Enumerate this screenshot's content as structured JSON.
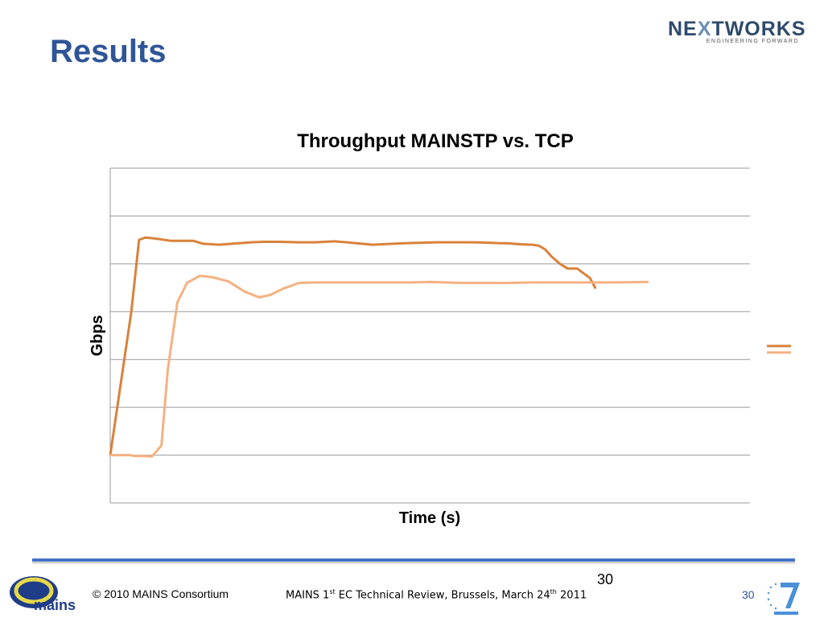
{
  "slide": {
    "title": "Results"
  },
  "logo": {
    "company_prefix": "NE",
    "company_accent": "X",
    "company_suffix": "TWORKS",
    "tagline": "ENGINEERING FORWARD"
  },
  "chart_data": {
    "type": "line",
    "title": "Throughput MAINSTP vs. TCP",
    "xlabel": "Time (s)",
    "ylabel": "Gbps",
    "ylim": [
      0,
      7
    ],
    "xlim": [
      0,
      100
    ],
    "grid": true,
    "legend": "right",
    "series": [
      {
        "color": "#d9823b",
        "x": [
          0,
          3.3,
          4.5,
          5.5,
          7,
          9.5,
          13,
          14.5,
          17,
          22,
          24,
          26.5,
          29.5,
          32,
          35,
          37,
          41,
          46,
          51,
          53,
          55,
          57,
          59.5,
          60.8,
          62,
          64,
          65.8,
          66,
          67,
          68,
          69,
          70.3,
          71.5,
          73,
          75,
          75.8
        ],
        "y": [
          1,
          4,
          5.5,
          5.55,
          5.53,
          5.48,
          5.48,
          5.42,
          5.4,
          5.45,
          5.46,
          5.46,
          5.45,
          5.45,
          5.47,
          5.45,
          5.4,
          5.43,
          5.45,
          5.45,
          5.45,
          5.45,
          5.44,
          5.43,
          5.43,
          5.41,
          5.4,
          5.4,
          5.38,
          5.3,
          5.15,
          5.0,
          4.9,
          4.9,
          4.7,
          4.5
        ]
      },
      {
        "color": "#f4b183",
        "x": [
          0,
          1.5,
          3,
          4,
          5,
          6.5,
          8,
          9,
          10.5,
          12,
          14,
          16,
          18.5,
          21,
          23.3,
          25,
          27,
          29.5,
          32,
          35,
          38,
          44,
          47,
          50,
          55,
          58,
          62,
          66,
          71,
          74,
          78,
          84
        ],
        "y": [
          1,
          1,
          1,
          0.98,
          0.98,
          0.97,
          1.2,
          2.8,
          4.2,
          4.6,
          4.75,
          4.72,
          4.63,
          4.42,
          4.3,
          4.35,
          4.48,
          4.6,
          4.61,
          4.61,
          4.61,
          4.61,
          4.61,
          4.62,
          4.6,
          4.6,
          4.6,
          4.61,
          4.61,
          4.61,
          4.61,
          4.62
        ]
      }
    ]
  },
  "footer": {
    "copyright": "© 2010 MAINS Consortium",
    "review_part1": "MAINS 1",
    "review_sup1": "st",
    "review_part2": " EC Technical Review, Brussels, March 24",
    "review_sup2": "th",
    "review_part3": " 2011",
    "page_number_top": "30",
    "page_number_bottom": "30",
    "mains_logo_text": "mains"
  }
}
